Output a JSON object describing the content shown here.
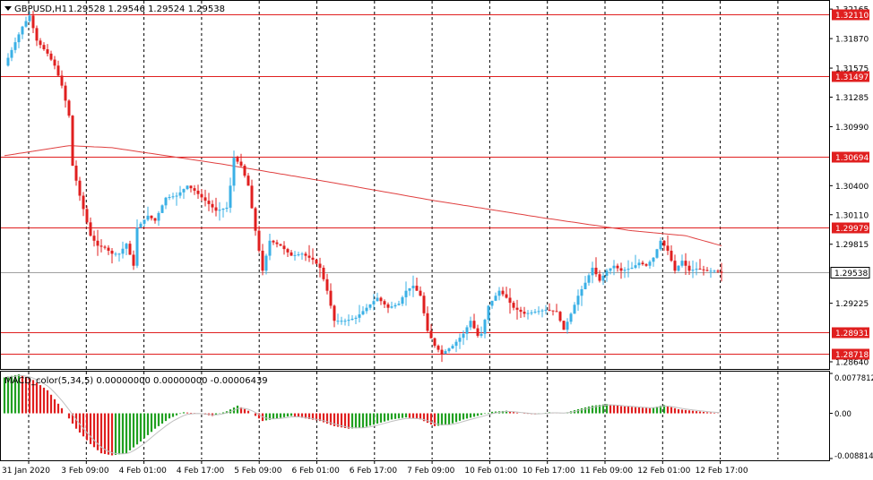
{
  "header": {
    "symbol": "GBPUSD,H1",
    "ohlc": "1.29528 1.29546 1.29524 1.29538",
    "menu_icon": "triangle-down-icon"
  },
  "colors": {
    "bull": "#3ab0e6",
    "bear": "#e01f1f",
    "level_line": "#e01f1f",
    "ma_line": "#e04040",
    "price_tag_bg": "#e01f1f",
    "macd_pos": "#20a020",
    "macd_neg": "#e01f1f",
    "signal": "#c0c0c0"
  },
  "price_axis": {
    "ticks": [
      "1.32165",
      "1.31870",
      "1.31575",
      "1.31285",
      "1.30990",
      "1.30400",
      "1.30110",
      "1.29815",
      "1.29225",
      "1.28640"
    ]
  },
  "levels": [
    {
      "label": "1.32110",
      "value": 1.3211
    },
    {
      "label": "1.31497",
      "value": 1.31497
    },
    {
      "label": "1.30694",
      "value": 1.30694
    },
    {
      "label": "1.29979",
      "value": 1.29979
    },
    {
      "label": "1.28931",
      "value": 1.28931
    },
    {
      "label": "1.28718",
      "value": 1.28718
    }
  ],
  "current_price": {
    "label": "1.29538",
    "value": 1.29538
  },
  "macd": {
    "title": "MACD_color(5,34,5) 0.00000000 0.00000000 -0.00006439",
    "ticks": [
      "0.0077812",
      "0.00",
      "-0.0088146"
    ]
  },
  "time_axis": {
    "labels": [
      "31 Jan 2020",
      "3 Feb 09:00",
      "4 Feb 01:00",
      "4 Feb 17:00",
      "5 Feb 09:00",
      "6 Feb 01:00",
      "6 Feb 17:00",
      "7 Feb 09:00",
      "10 Feb 01:00",
      "10 Feb 17:00",
      "11 Feb 09:00",
      "12 Feb 01:00",
      "12 Feb 17:00"
    ]
  },
  "chart_data": {
    "type": "candlestick",
    "symbol": "GBPUSD",
    "timeframe": "H1",
    "ylim": [
      1.2864,
      1.3222
    ],
    "x_categories": [
      "31 Jan 2020",
      "3 Feb 09:00",
      "4 Feb 01:00",
      "4 Feb 17:00",
      "5 Feb 09:00",
      "6 Feb 01:00",
      "6 Feb 17:00",
      "7 Feb 09:00",
      "10 Feb 01:00",
      "10 Feb 17:00",
      "11 Feb 09:00",
      "12 Feb 01:00",
      "12 Feb 17:00"
    ],
    "close_path": [
      [
        0,
        1.316
      ],
      [
        5,
        1.3199
      ],
      [
        7,
        1.321
      ],
      [
        9,
        1.3185
      ],
      [
        12,
        1.3172
      ],
      [
        14,
        1.316
      ],
      [
        16,
        1.314
      ],
      [
        18,
        1.311
      ],
      [
        19,
        1.306
      ],
      [
        21,
        1.303
      ],
      [
        24,
        1.299
      ],
      [
        26,
        1.298
      ],
      [
        28,
        1.2978
      ],
      [
        30,
        1.2972
      ],
      [
        32,
        1.2972
      ],
      [
        34,
        1.2982
      ],
      [
        36,
        1.296
      ],
      [
        37,
        1.2998
      ],
      [
        40,
        1.301
      ],
      [
        42,
        1.3005
      ],
      [
        45,
        1.3028
      ],
      [
        48,
        1.303
      ],
      [
        51,
        1.304
      ],
      [
        53,
        1.3035
      ],
      [
        56,
        1.3025
      ],
      [
        59,
        1.3015
      ],
      [
        62,
        1.3018
      ],
      [
        63,
        1.304
      ],
      [
        64,
        1.3068
      ],
      [
        66,
        1.306
      ],
      [
        68,
        1.304
      ],
      [
        70,
        1.2995
      ],
      [
        72,
        1.2955
      ],
      [
        74,
        1.2985
      ],
      [
        77,
        1.298
      ],
      [
        80,
        1.297
      ],
      [
        83,
        1.2972
      ],
      [
        86,
        1.2966
      ],
      [
        88,
        1.2958
      ],
      [
        90,
        1.2935
      ],
      [
        92,
        1.2905
      ],
      [
        95,
        1.2905
      ],
      [
        98,
        1.2908
      ],
      [
        101,
        1.2918
      ],
      [
        104,
        1.2928
      ],
      [
        107,
        1.2918
      ],
      [
        110,
        1.2922
      ],
      [
        112,
        1.2935
      ],
      [
        114,
        1.294
      ],
      [
        116,
        1.293
      ],
      [
        118,
        1.2895
      ],
      [
        120,
        1.288
      ],
      [
        122,
        1.2872
      ],
      [
        125,
        1.288
      ],
      [
        128,
        1.2892
      ],
      [
        130,
        1.2905
      ],
      [
        132,
        1.289
      ],
      [
        133,
        1.2892
      ],
      [
        135,
        1.292
      ],
      [
        138,
        1.2935
      ],
      [
        140,
        1.2928
      ],
      [
        142,
        1.2918
      ],
      [
        145,
        1.2912
      ],
      [
        148,
        1.2914
      ],
      [
        151,
        1.2916
      ],
      [
        154,
        1.2914
      ],
      [
        156,
        1.2896
      ],
      [
        158,
        1.2912
      ],
      [
        160,
        1.293
      ],
      [
        162,
        1.2943
      ],
      [
        164,
        1.2958
      ],
      [
        166,
        1.2945
      ],
      [
        168,
        1.2955
      ],
      [
        170,
        1.296
      ],
      [
        172,
        1.2955
      ],
      [
        175,
        1.2958
      ],
      [
        177,
        1.2963
      ],
      [
        179,
        1.296
      ],
      [
        181,
        1.2968
      ],
      [
        183,
        1.2985
      ],
      [
        185,
        1.2975
      ],
      [
        187,
        1.2955
      ],
      [
        189,
        1.2965
      ],
      [
        191,
        1.2955
      ],
      [
        193,
        1.2957
      ],
      [
        196,
        1.2955
      ],
      [
        198,
        1.2955
      ],
      [
        200,
        1.2953
      ]
    ],
    "moving_average": [
      [
        0,
        1.307
      ],
      [
        18,
        1.308
      ],
      [
        30,
        1.3078
      ],
      [
        60,
        1.3062
      ],
      [
        90,
        1.3044
      ],
      [
        120,
        1.3025
      ],
      [
        150,
        1.3008
      ],
      [
        175,
        1.2995
      ],
      [
        190,
        1.299
      ],
      [
        200,
        1.298
      ]
    ],
    "macd_histogram": [
      [
        0,
        0.007
      ],
      [
        4,
        0.0076
      ],
      [
        8,
        0.0065
      ],
      [
        12,
        0.0045
      ],
      [
        16,
        0.001
      ],
      [
        20,
        -0.003
      ],
      [
        24,
        -0.006
      ],
      [
        27,
        -0.0078
      ],
      [
        30,
        -0.0082
      ],
      [
        34,
        -0.0078
      ],
      [
        38,
        -0.0055
      ],
      [
        42,
        -0.003
      ],
      [
        46,
        -0.001
      ],
      [
        50,
        0.0002
      ],
      [
        54,
        0.0
      ],
      [
        58,
        -0.0005
      ],
      [
        62,
        0.0004
      ],
      [
        65,
        0.0015
      ],
      [
        68,
        0.0005
      ],
      [
        72,
        -0.0015
      ],
      [
        76,
        -0.001
      ],
      [
        80,
        -0.0005
      ],
      [
        84,
        -0.001
      ],
      [
        88,
        -0.0015
      ],
      [
        92,
        -0.0025
      ],
      [
        96,
        -0.003
      ],
      [
        100,
        -0.0028
      ],
      [
        104,
        -0.002
      ],
      [
        108,
        -0.0012
      ],
      [
        112,
        -0.0008
      ],
      [
        116,
        -0.0012
      ],
      [
        120,
        -0.0025
      ],
      [
        124,
        -0.0022
      ],
      [
        128,
        -0.0012
      ],
      [
        132,
        -0.0005
      ],
      [
        136,
        0.0003
      ],
      [
        140,
        0.0005
      ],
      [
        144,
        0.0
      ],
      [
        148,
        -0.0002
      ],
      [
        152,
        0.0002
      ],
      [
        156,
        0.0
      ],
      [
        160,
        0.0008
      ],
      [
        164,
        0.0015
      ],
      [
        168,
        0.0018
      ],
      [
        172,
        0.0014
      ],
      [
        176,
        0.0012
      ],
      [
        180,
        0.001
      ],
      [
        184,
        0.0016
      ],
      [
        188,
        0.0008
      ],
      [
        192,
        0.0005
      ],
      [
        196,
        0.0002
      ],
      [
        200,
        0.0
      ]
    ]
  }
}
